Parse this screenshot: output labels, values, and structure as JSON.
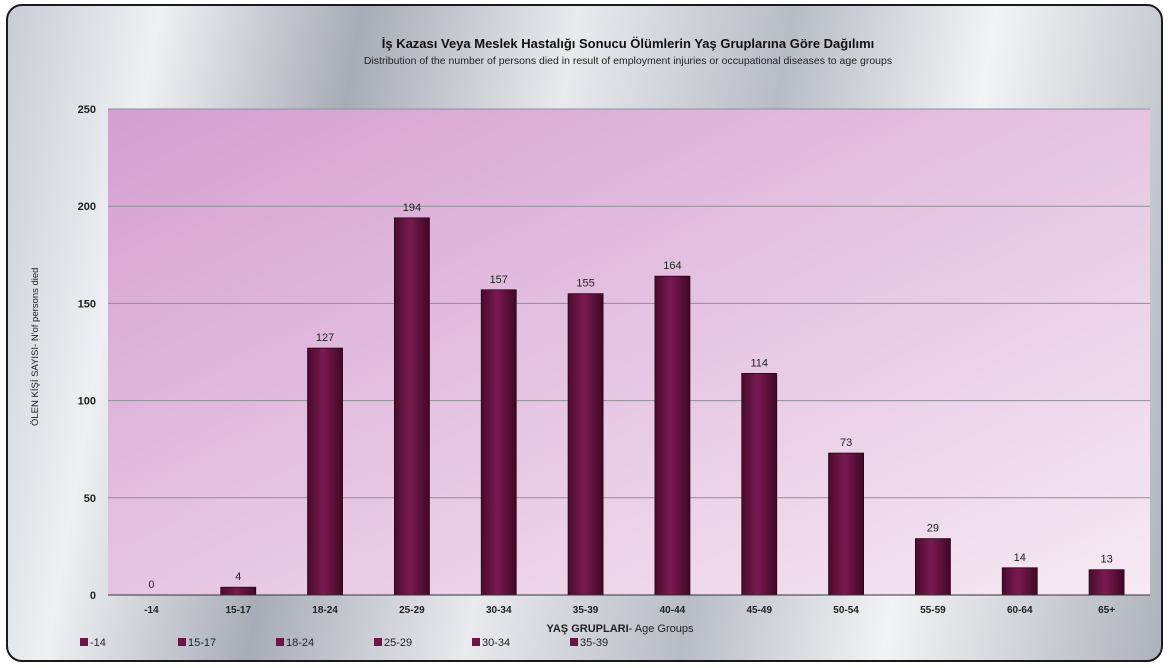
{
  "chart_data": {
    "type": "bar",
    "title": "İş Kazası  Veya Meslek Hastalığı Sonucu Ölümlerin Yaş Gruplarına Göre Dağılımı",
    "subtitle": "Distribution of the number of persons died in result of employment injuries or occupational diseases to age groups",
    "xlabel_bold": "YAŞ GRUPLARI",
    "xlabel_rest": "- Age Groups",
    "ylabel": "ÖLEN KİŞİ SAYISI- N'of persons died",
    "categories": [
      "-14",
      "15-17",
      "18-24",
      "25-29",
      "30-34",
      "35-39",
      "40-44",
      "45-49",
      "50-54",
      "55-59",
      "60-64",
      "65+"
    ],
    "values": [
      0,
      4,
      127,
      194,
      157,
      155,
      164,
      114,
      73,
      29,
      14,
      13
    ],
    "ylim": [
      0,
      250
    ],
    "yticks": [
      0,
      50,
      100,
      150,
      200,
      250
    ],
    "grid": true,
    "legend_position": "bottom",
    "legend": [
      "-14",
      "15-17",
      "18-24",
      "25-29",
      "30-34",
      "35-39"
    ],
    "bar_color": "#6e1446",
    "plot_bg_colors": [
      "#d49fd0",
      "#f6eaf4"
    ]
  }
}
